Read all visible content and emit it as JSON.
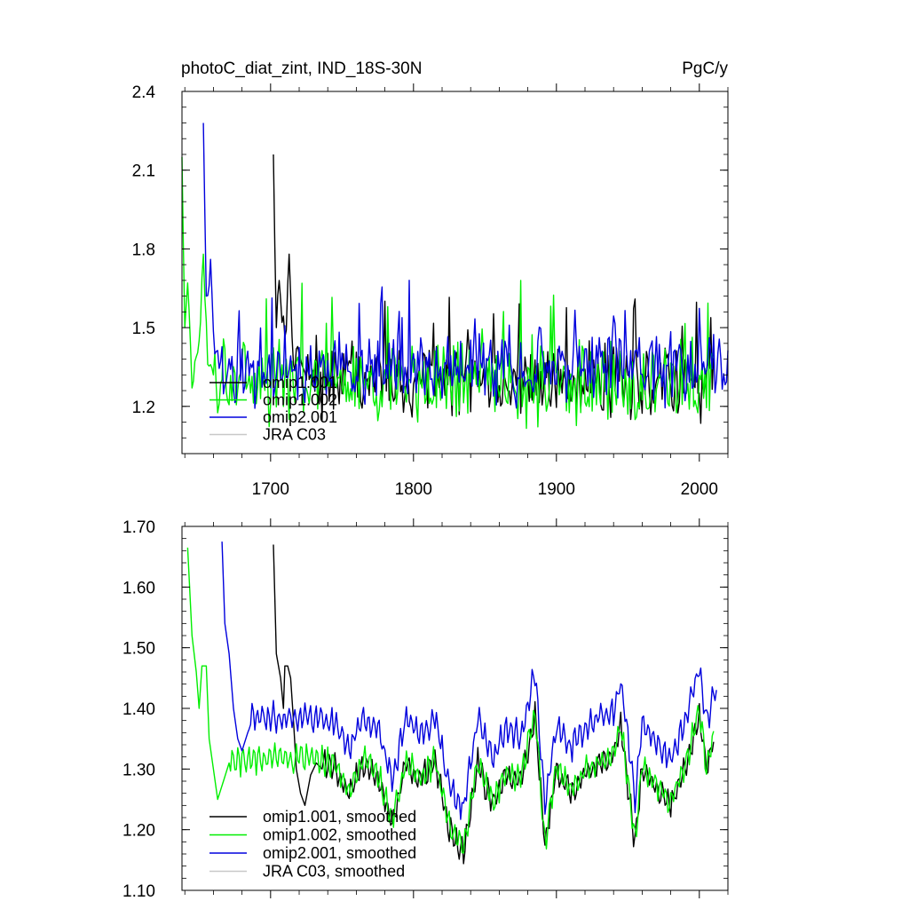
{
  "chart_data": [
    {
      "type": "line",
      "title": "photoC_diat_zint, IND_18S-30N",
      "units": "PgC/y",
      "xlabel": "",
      "ylabel": "",
      "xlim": [
        1638,
        2020
      ],
      "ylim": [
        1.02,
        2.4
      ],
      "xticks": [
        1700,
        1800,
        1900,
        2000
      ],
      "xtick_labels": [
        "1700",
        "1800",
        "1900",
        "2000"
      ],
      "yticks": [
        1.2,
        1.5,
        1.8,
        2.1,
        2.4
      ],
      "ytick_labels": [
        "1.2",
        "1.5",
        "1.8",
        "2.1",
        "2.4"
      ],
      "legend_placement": "lower-left",
      "series": [
        {
          "name": "omip1.001",
          "color": "#000000",
          "start": 1702,
          "end": 2010,
          "initial": 2.16,
          "decay": 7,
          "base": 1.3,
          "amp": 0.11,
          "seed": 7,
          "anchors": [
            [
              1702,
              2.16
            ],
            [
              1704,
              1.5
            ],
            [
              1706,
              1.68
            ],
            [
              1708,
              1.52
            ],
            [
              1711,
              1.49
            ],
            [
              1713,
              1.78
            ],
            [
              1716,
              1.36
            ],
            [
              1720,
              1.4
            ],
            [
              1725,
              1.3
            ]
          ]
        },
        {
          "name": "omip1.002",
          "color": "#00ee00",
          "start": 1638,
          "end": 2010,
          "initial": 2.15,
          "decay": 4,
          "base": 1.29,
          "amp": 0.12,
          "seed": 3,
          "anchors": [
            [
              1638,
              2.15
            ],
            [
              1640,
              1.5
            ],
            [
              1642,
              1.67
            ],
            [
              1645,
              1.27
            ],
            [
              1650,
              1.45
            ],
            [
              1653,
              1.78
            ],
            [
              1656,
              1.36
            ],
            [
              1660,
              1.32
            ]
          ]
        },
        {
          "name": "omip2.001",
          "color": "#0000dd",
          "start": 1653,
          "end": 2020,
          "initial": 2.28,
          "decay": 4,
          "base": 1.34,
          "amp": 0.1,
          "seed": 11,
          "anchors": [
            [
              1653,
              2.28
            ],
            [
              1655,
              1.62
            ],
            [
              1657,
              1.66
            ],
            [
              1658,
              1.76
            ],
            [
              1661,
              1.4
            ],
            [
              1665,
              1.37
            ]
          ]
        },
        {
          "name": "JRA C03",
          "color": "#c8c8c8",
          "start": 0,
          "end": 0,
          "initial": 0,
          "decay": 1,
          "base": 0,
          "amp": 0,
          "seed": 1,
          "anchors": []
        }
      ]
    },
    {
      "type": "line",
      "title": "",
      "xlabel": "",
      "ylabel": "",
      "xlim": [
        1638,
        2020
      ],
      "ylim": [
        1.1,
        1.7
      ],
      "xticks": [
        1700,
        1800,
        1900,
        2000
      ],
      "xtick_labels": [
        "",
        "",
        "",
        ""
      ],
      "yticks": [
        1.1,
        1.2,
        1.3,
        1.4,
        1.5,
        1.6,
        1.7
      ],
      "ytick_labels": [
        "1.10",
        "1.20",
        "1.30",
        "1.40",
        "1.50",
        "1.60",
        "1.70"
      ],
      "legend_placement": "lower-left",
      "series": [
        {
          "name": "omip1.001, smoothed",
          "color": "#000000",
          "start": 1702,
          "end": 2010,
          "seed": 7,
          "points": [
            [
              1702,
              1.67
            ],
            [
              1704,
              1.49
            ],
            [
              1707,
              1.45
            ],
            [
              1709,
              1.4
            ],
            [
              1710,
              1.47
            ],
            [
              1712,
              1.47
            ],
            [
              1714,
              1.45
            ],
            [
              1716,
              1.38
            ],
            [
              1718,
              1.3
            ],
            [
              1721,
              1.26
            ],
            [
              1724,
              1.24
            ],
            [
              1728,
              1.29
            ],
            [
              1732,
              1.31
            ],
            [
              1736,
              1.3
            ]
          ]
        },
        {
          "name": "omip1.002, smoothed",
          "color": "#00ee00",
          "start": 1642,
          "end": 2010,
          "seed": 3,
          "points": [
            [
              1642,
              1.665
            ],
            [
              1645,
              1.52
            ],
            [
              1648,
              1.46
            ],
            [
              1650,
              1.4
            ],
            [
              1652,
              1.47
            ],
            [
              1655,
              1.47
            ],
            [
              1657,
              1.35
            ],
            [
              1660,
              1.3
            ],
            [
              1663,
              1.25
            ],
            [
              1667,
              1.28
            ],
            [
              1671,
              1.31
            ]
          ]
        },
        {
          "name": "omip2.001, smoothed",
          "color": "#0000dd",
          "start": 1666,
          "end": 2012,
          "seed": 11,
          "points": [
            [
              1666,
              1.675
            ],
            [
              1668,
              1.54
            ],
            [
              1671,
              1.49
            ],
            [
              1674,
              1.4
            ],
            [
              1677,
              1.35
            ],
            [
              1680,
              1.33
            ],
            [
              1684,
              1.36
            ]
          ]
        },
        {
          "name": "JRA C03, smoothed",
          "color": "#c8c8c8",
          "start": 0,
          "end": 0,
          "seed": 1,
          "points": []
        }
      ],
      "profile": [
        [
          1736,
          1.31
        ],
        [
          1745,
          1.3
        ],
        [
          1755,
          1.26
        ],
        [
          1765,
          1.31
        ],
        [
          1775,
          1.29
        ],
        [
          1785,
          1.21
        ],
        [
          1795,
          1.31
        ],
        [
          1805,
          1.28
        ],
        [
          1815,
          1.31
        ],
        [
          1825,
          1.2
        ],
        [
          1835,
          1.16
        ],
        [
          1845,
          1.31
        ],
        [
          1855,
          1.24
        ],
        [
          1865,
          1.29
        ],
        [
          1875,
          1.28
        ],
        [
          1885,
          1.39
        ],
        [
          1892,
          1.17
        ],
        [
          1900,
          1.3
        ],
        [
          1910,
          1.26
        ],
        [
          1920,
          1.29
        ],
        [
          1930,
          1.31
        ],
        [
          1940,
          1.32
        ],
        [
          1945,
          1.37
        ],
        [
          1955,
          1.18
        ],
        [
          1960,
          1.3
        ],
        [
          1970,
          1.27
        ],
        [
          1980,
          1.24
        ],
        [
          1990,
          1.3
        ],
        [
          2000,
          1.39
        ],
        [
          2005,
          1.3
        ],
        [
          2010,
          1.35
        ]
      ],
      "offsets": {
        "omip1.001, smoothed": 0.0,
        "omip1.002, smoothed": 0.005,
        "omip2.001, smoothed": 0.075
      }
    }
  ]
}
